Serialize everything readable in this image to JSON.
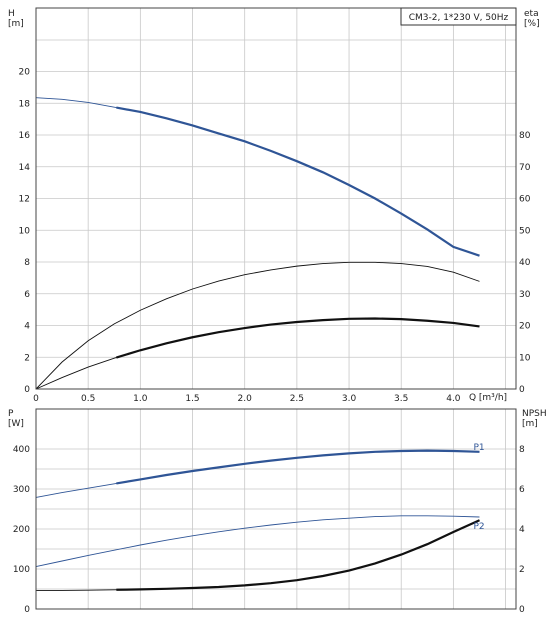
{
  "chart_data": [
    {
      "type": "line",
      "title": "CM3-2, 1*230 V, 50Hz",
      "xlabel": "Q [m³/h]",
      "ylabel": "H\n[m]",
      "ylabel_right": "eta\n[%]",
      "xlim": [
        0,
        4.6
      ],
      "ylim": [
        0,
        20
      ],
      "ylim_right": [
        0,
        80
      ],
      "grid": true,
      "x_ticks": [
        "0",
        "0.5",
        "1.0",
        "1.5",
        "2.0",
        "2.5",
        "3.0",
        "3.5",
        "4.0"
      ],
      "y_ticks": [
        "0",
        "2",
        "4",
        "6",
        "8",
        "10",
        "12",
        "14",
        "16",
        "18",
        "20"
      ],
      "y_right_ticks": [
        "0",
        "10",
        "20",
        "30",
        "40",
        "50",
        "60",
        "70",
        "80"
      ],
      "series": [
        {
          "name": "",
          "axis": "left",
          "color": "#2f5596",
          "x": [
            0,
            0.25,
            0.5,
            0.75,
            1.0,
            1.25,
            1.5,
            1.75,
            2.0,
            2.25,
            2.5,
            2.75,
            3.0,
            3.25,
            3.5,
            3.75,
            4.0,
            4.25
          ],
          "y": [
            18.35,
            18.25,
            18.05,
            17.75,
            17.45,
            17.05,
            16.6,
            16.1,
            15.6,
            15.0,
            14.35,
            13.65,
            12.85,
            12.0,
            11.05,
            10.05,
            8.95,
            8.4
          ],
          "emphasized_from": 0.77
        },
        {
          "name": "",
          "axis": "right",
          "color": "#111111",
          "x": [
            0,
            0.25,
            0.5,
            0.75,
            1.0,
            1.25,
            1.5,
            1.75,
            2.0,
            2.25,
            2.5,
            2.75,
            3.0,
            3.25,
            3.5,
            3.75,
            4.0,
            4.25
          ],
          "y": [
            0,
            8.5,
            15.2,
            20.5,
            24.8,
            28.4,
            31.5,
            34.0,
            36.0,
            37.5,
            38.7,
            39.5,
            39.9,
            39.9,
            39.5,
            38.6,
            36.8,
            33.9
          ],
          "emphasized_from": null
        },
        {
          "name": "",
          "axis": "right",
          "color": "#111111",
          "x": [
            0,
            0.25,
            0.5,
            0.75,
            1.0,
            1.25,
            1.5,
            1.75,
            2.0,
            2.25,
            2.5,
            2.75,
            3.0,
            3.25,
            3.5,
            3.75,
            4.0,
            4.25
          ],
          "y": [
            0,
            3.6,
            6.9,
            9.7,
            12.2,
            14.4,
            16.3,
            17.9,
            19.2,
            20.3,
            21.1,
            21.7,
            22.1,
            22.2,
            22.0,
            21.5,
            20.8,
            19.7
          ],
          "emphasized_from": 0.77
        }
      ]
    },
    {
      "type": "line",
      "xlabel": "",
      "ylabel": "P\n[W]",
      "ylabel_right": "NPSH\n[m]",
      "xlim": [
        0,
        4.6
      ],
      "ylim": [
        0,
        400
      ],
      "ylim_right": [
        0,
        8
      ],
      "grid": true,
      "y_ticks": [
        "0",
        "100",
        "200",
        "300",
        "400"
      ],
      "y_right_ticks": [
        "0",
        "2",
        "4",
        "6",
        "8"
      ],
      "series": [
        {
          "name": "P1",
          "axis": "left",
          "color": "#2f5596",
          "x": [
            0,
            0.25,
            0.5,
            0.75,
            1.0,
            1.25,
            1.5,
            1.75,
            2.0,
            2.25,
            2.5,
            2.75,
            3.0,
            3.25,
            3.5,
            3.75,
            4.0,
            4.25
          ],
          "y": [
            279,
            291,
            302,
            313,
            324,
            335,
            345,
            354,
            363,
            371,
            378,
            384,
            389,
            393,
            395,
            396,
            395,
            393
          ],
          "emphasized_from": 0.77
        },
        {
          "name": "P2",
          "axis": "left",
          "color": "#2f5596",
          "x": [
            0,
            0.25,
            0.5,
            0.75,
            1.0,
            1.25,
            1.5,
            1.75,
            2.0,
            2.25,
            2.5,
            2.75,
            3.0,
            3.25,
            3.5,
            3.75,
            4.0,
            4.25
          ],
          "y": [
            106,
            120,
            134,
            147,
            160,
            172,
            183,
            193,
            202,
            210,
            217,
            223,
            227,
            231,
            233,
            233,
            232,
            230
          ],
          "emphasized_from": null
        },
        {
          "name": "",
          "axis": "right",
          "color": "#111111",
          "x": [
            0,
            0.25,
            0.5,
            0.75,
            1.0,
            1.25,
            1.5,
            1.75,
            2.0,
            2.25,
            2.5,
            2.75,
            3.0,
            3.25,
            3.5,
            3.75,
            4.0,
            4.25
          ],
          "y": [
            0.93,
            0.93,
            0.94,
            0.96,
            0.98,
            1.01,
            1.05,
            1.1,
            1.18,
            1.29,
            1.44,
            1.65,
            1.92,
            2.28,
            2.72,
            3.24,
            3.85,
            4.44
          ],
          "emphasized_from": 0.77
        }
      ]
    }
  ]
}
